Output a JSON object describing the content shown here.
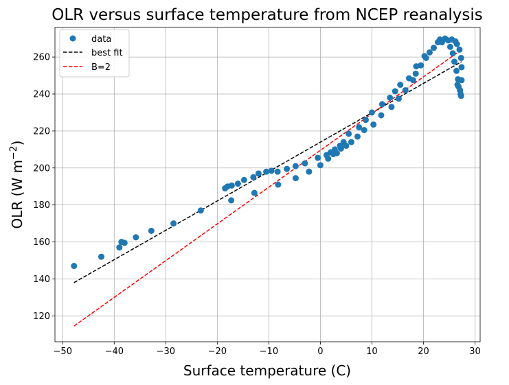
{
  "chart_data": {
    "type": "scatter",
    "title": "OLR versus surface temperature from NCEP reanalysis",
    "xlabel": "Surface temperature (C)",
    "ylabel_main": "OLR (W m",
    "ylabel_exp": "−2",
    "ylabel_close": ")",
    "xlim": [
      -51.5,
      31
    ],
    "ylim": [
      106,
      276
    ],
    "grid": true,
    "legend_position": "upper-left",
    "x_ticks": [
      -50,
      -40,
      -30,
      -20,
      -10,
      0,
      10,
      20,
      30
    ],
    "y_ticks": [
      120,
      140,
      160,
      180,
      200,
      220,
      240,
      260
    ],
    "colors": {
      "data": "#1f77b4",
      "best_fit": "#000000",
      "b2": "#ff0000"
    },
    "series": [
      {
        "name": "data",
        "style": "markers",
        "points": [
          [
            -47.8,
            147
          ],
          [
            -42.5,
            152
          ],
          [
            -39.0,
            157
          ],
          [
            -38.6,
            160
          ],
          [
            -38.0,
            159.5
          ],
          [
            -35.8,
            162.5
          ],
          [
            -32.8,
            166
          ],
          [
            -28.5,
            170
          ],
          [
            -23.2,
            177
          ],
          [
            -18.5,
            189
          ],
          [
            -18.0,
            190
          ],
          [
            -17.2,
            190.5
          ],
          [
            -17.3,
            182.5
          ],
          [
            -16.0,
            191.5
          ],
          [
            -14.8,
            193.5
          ],
          [
            -13.0,
            195
          ],
          [
            -12.8,
            186.5
          ],
          [
            -12.0,
            197
          ],
          [
            -10.5,
            198
          ],
          [
            -9.5,
            198.5
          ],
          [
            -8.3,
            198
          ],
          [
            -8.2,
            191
          ],
          [
            -6.5,
            199.5
          ],
          [
            -4.8,
            201
          ],
          [
            -4.8,
            194.5
          ],
          [
            -3.0,
            202.5
          ],
          [
            -2.2,
            198
          ],
          [
            -0.5,
            205.5
          ],
          [
            0.0,
            201.5
          ],
          [
            1.2,
            207
          ],
          [
            1.5,
            205
          ],
          [
            2.0,
            208.5
          ],
          [
            2.5,
            207.5
          ],
          [
            2.8,
            210
          ],
          [
            3.2,
            208
          ],
          [
            3.8,
            212
          ],
          [
            4.0,
            210.5
          ],
          [
            4.5,
            214
          ],
          [
            5.0,
            212
          ],
          [
            5.5,
            218.5
          ],
          [
            6.0,
            214
          ],
          [
            7.2,
            217
          ],
          [
            7.5,
            222
          ],
          [
            8.5,
            220.5
          ],
          [
            8.8,
            226
          ],
          [
            10.0,
            230
          ],
          [
            10.3,
            223.5
          ],
          [
            11.8,
            228.5
          ],
          [
            12.0,
            234.5
          ],
          [
            13.5,
            238
          ],
          [
            13.8,
            233
          ],
          [
            14.5,
            241.5
          ],
          [
            15.2,
            237.5
          ],
          [
            15.5,
            245
          ],
          [
            16.5,
            242
          ],
          [
            17.2,
            248.5
          ],
          [
            18.0,
            247.5
          ],
          [
            18.5,
            251
          ],
          [
            18.6,
            255
          ],
          [
            19.5,
            255.5
          ],
          [
            20.2,
            260.5
          ],
          [
            20.5,
            259.5
          ],
          [
            21.2,
            262.5
          ],
          [
            22.0,
            265
          ],
          [
            22.8,
            268
          ],
          [
            23.2,
            269.5
          ],
          [
            23.6,
            268
          ],
          [
            24.2,
            270
          ],
          [
            24.8,
            269
          ],
          [
            25.2,
            265.5
          ],
          [
            25.5,
            269.5
          ],
          [
            25.7,
            262
          ],
          [
            26.0,
            257.5
          ],
          [
            26.2,
            268.5
          ],
          [
            26.4,
            252.5
          ],
          [
            26.5,
            267
          ],
          [
            26.6,
            245
          ],
          [
            26.7,
            248
          ],
          [
            26.8,
            244
          ],
          [
            27.0,
            264
          ],
          [
            27.1,
            242
          ],
          [
            27.2,
            240
          ],
          [
            27.3,
            239
          ],
          [
            27.3,
            259.5
          ],
          [
            27.4,
            247.5
          ],
          [
            27.4,
            254.5
          ]
        ]
      },
      {
        "name": "best fit",
        "style": "dashed",
        "points": [
          [
            -47.8,
            138
          ],
          [
            27.4,
            257.5
          ]
        ]
      },
      {
        "name": "B=2",
        "style": "dashed",
        "points": [
          [
            -47.8,
            114.5
          ],
          [
            27.4,
            264
          ]
        ]
      }
    ]
  }
}
